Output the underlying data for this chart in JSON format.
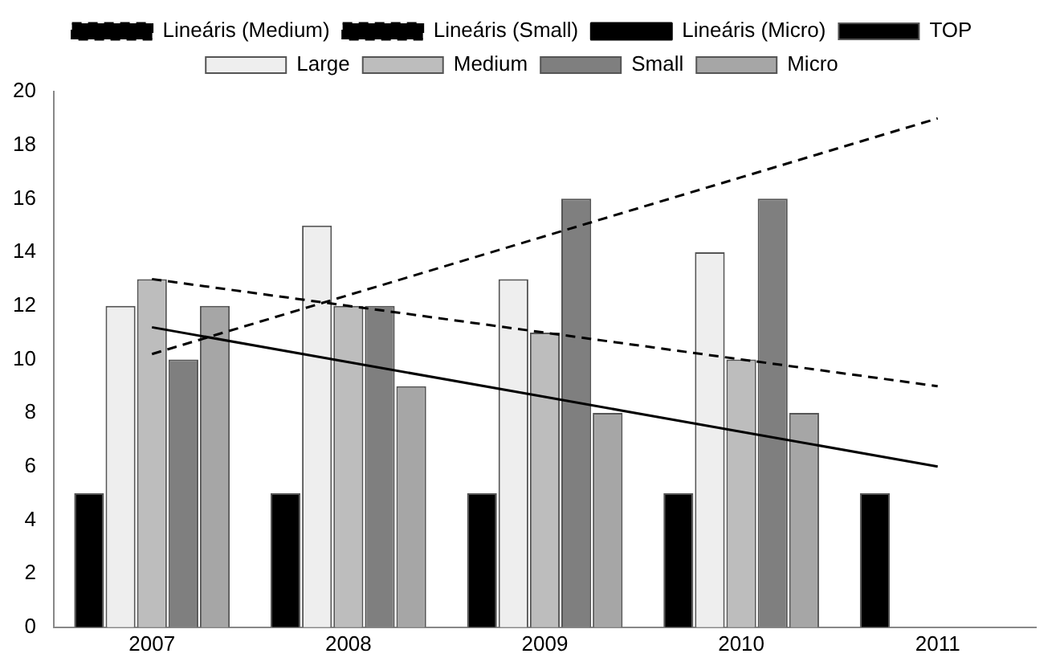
{
  "chart_data": {
    "type": "bar",
    "categories": [
      "2007",
      "2008",
      "2009",
      "2010",
      "2011"
    ],
    "series": [
      {
        "name": "TOP",
        "color": "#000000",
        "values": [
          5,
          5,
          5,
          5,
          5
        ]
      },
      {
        "name": "Large",
        "color": "#eeeeee",
        "values": [
          12,
          15,
          13,
          14,
          null
        ]
      },
      {
        "name": "Medium",
        "color": "#bdbdbd",
        "values": [
          13,
          12,
          11,
          10,
          null
        ]
      },
      {
        "name": "Small",
        "color": "#7f7f7f",
        "values": [
          10,
          12,
          16,
          16,
          null
        ]
      },
      {
        "name": "Micro",
        "color": "#a6a6a6",
        "values": [
          12,
          9,
          8,
          8,
          null
        ]
      },
      {
        "name": "Lineáris (Medium)",
        "type": "line",
        "color": "#000000",
        "line_style": "dashed",
        "values": [
          13,
          12,
          11,
          10,
          9
        ]
      },
      {
        "name": "Lineáris (Small)",
        "type": "line",
        "color": "#000000",
        "line_style": "dashed",
        "values": [
          10.2,
          12.4,
          14.6,
          16.8,
          19
        ]
      },
      {
        "name": "Lineáris (Micro)",
        "type": "line",
        "color": "#000000",
        "line_style": "solid",
        "values": [
          11.2,
          9.9,
          8.6,
          7.3,
          6
        ]
      }
    ],
    "ylim": [
      0,
      20
    ],
    "yticks": [
      0,
      2,
      4,
      6,
      8,
      10,
      12,
      14,
      16,
      18,
      20
    ],
    "grid": false,
    "legend": "top",
    "marker": "none"
  }
}
